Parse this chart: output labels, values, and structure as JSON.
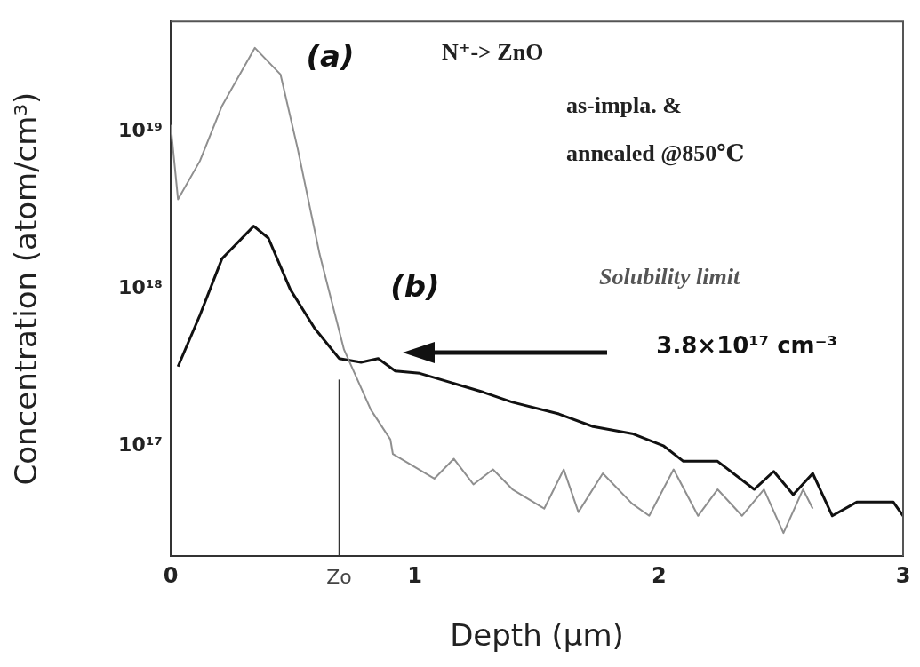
{
  "chart_data": {
    "type": "line",
    "xlabel": "Depth (μm)",
    "ylabel": "Concentration (atom/cm³)",
    "xlim": [
      0,
      3
    ],
    "xticks": [
      0,
      1,
      2,
      3
    ],
    "ylim": [
      2e+16,
      5e+19
    ],
    "log": "y",
    "yticks": [
      {
        "value": 1e+17,
        "label": "10¹⁷"
      },
      {
        "value": 1e+18,
        "label": "10¹⁸"
      },
      {
        "value": 1e+19,
        "label": "10¹⁹"
      }
    ],
    "grid": false,
    "legend": false,
    "marker": "none",
    "line_style": "solid",
    "series": [
      {
        "name": "(a)",
        "color": "#8f8f8f",
        "x": [
          0,
          0.03,
          0.12,
          0.21,
          0.345,
          0.45,
          0.52,
          0.61,
          0.71,
          0.82,
          0.9,
          0.91,
          1.08,
          1.16,
          1.24,
          1.32,
          1.4,
          1.53,
          1.61,
          1.67,
          1.77,
          1.89,
          1.96,
          2.06,
          2.16,
          2.24,
          2.34,
          2.43,
          2.51,
          2.59,
          2.63
        ],
        "values": [
          1.1e+19,
          3.7e+18,
          6.5e+18,
          1.45e+19,
          3.4e+19,
          2.3e+19,
          7.8e+18,
          1.66e+18,
          4.1e+17,
          1.7e+17,
          1.1e+17,
          8.9e+16,
          6.2e+16,
          8.3e+16,
          5.7e+16,
          7.1e+16,
          5.3e+16,
          4e+16,
          7.1e+16,
          3.8e+16,
          6.7e+16,
          4.3e+16,
          3.6e+16,
          7.1e+16,
          3.6e+16,
          5.3e+16,
          3.6e+16,
          5.3e+16,
          2.8e+16,
          5.3e+16,
          4e+16
        ]
      },
      {
        "name": "(b)",
        "color": "#111111",
        "x": [
          0.03,
          0.12,
          0.21,
          0.34,
          0.4,
          0.49,
          0.59,
          0.69,
          0.78,
          0.85,
          0.92,
          1.02,
          1.16,
          1.28,
          1.4,
          1.59,
          1.73,
          1.89,
          2.02,
          2.1,
          2.24,
          2.39,
          2.47,
          2.55,
          2.63,
          2.71,
          2.81,
          2.96,
          3.0
        ],
        "values": [
          3.2e+17,
          6.8e+17,
          1.55e+18,
          2.5e+18,
          2.1e+18,
          9.9e+17,
          5.6e+17,
          3.6e+17,
          3.4e+17,
          3.6e+17,
          3e+17,
          2.9e+17,
          2.5e+17,
          2.2e+17,
          1.9e+17,
          1.6e+17,
          1.33e+17,
          1.2e+17,
          1e+17,
          8e+16,
          8e+16,
          5.3e+16,
          6.9e+16,
          4.9e+16,
          6.7e+16,
          3.6e+16,
          4.4e+16,
          4.4e+16,
          3.6e+16
        ]
      }
    ],
    "ref_lines": [
      {
        "axis": "x",
        "value": 0.69,
        "label": "Zo"
      }
    ],
    "annotations": [
      "N⁺-> ZnO",
      "as-impla. &",
      "annealed @850℃",
      "Solubility limit",
      "3.8×10¹⁷ cm⁻³"
    ]
  }
}
